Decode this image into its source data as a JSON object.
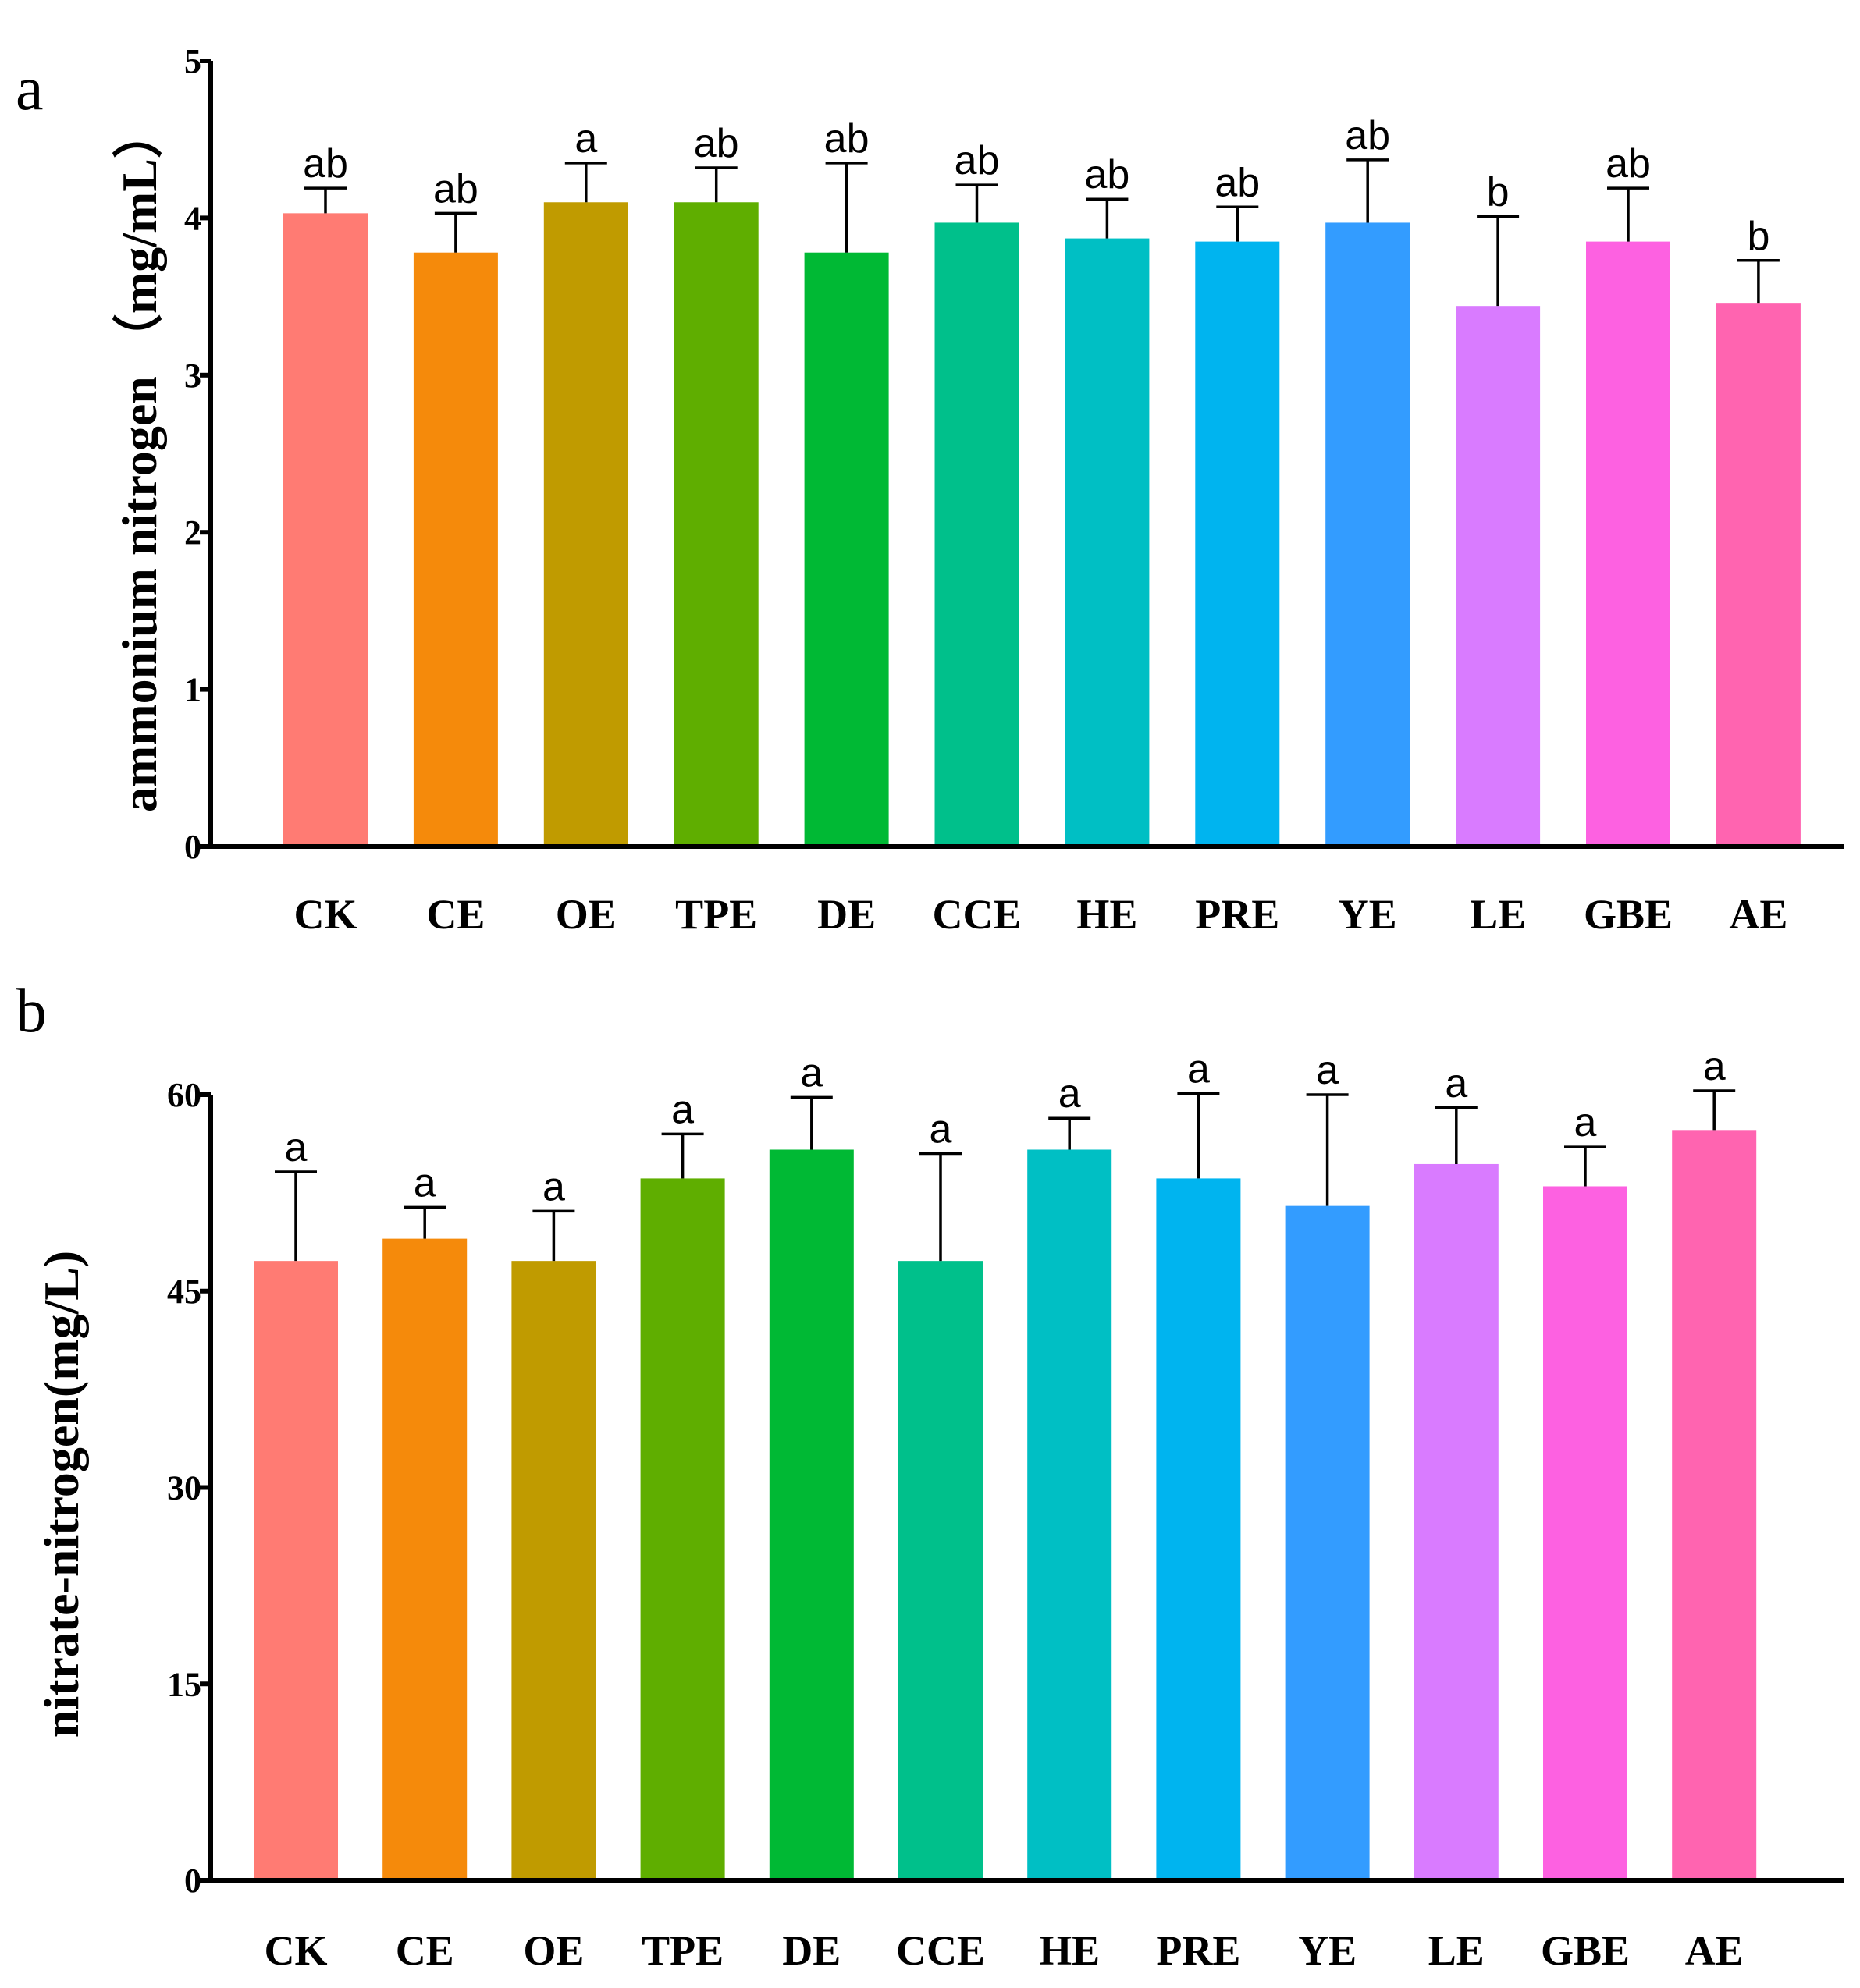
{
  "chart_data": [
    {
      "type": "bar",
      "panel_label": "a",
      "ylabel": "ammonium nitrogen （mg/mL）",
      "ylim": [
        0,
        5
      ],
      "yticks": [
        0,
        1,
        2,
        3,
        4,
        5
      ],
      "categories": [
        "CK",
        "CE",
        "OE",
        "TPE",
        "DE",
        "CCE",
        "HE",
        "PRE",
        "YE",
        "LE",
        "GBE",
        "AE"
      ],
      "values": [
        4.03,
        3.78,
        4.1,
        4.1,
        3.78,
        3.97,
        3.87,
        3.85,
        3.97,
        3.44,
        3.85,
        3.46
      ],
      "errors": [
        0.16,
        0.25,
        0.25,
        0.22,
        0.57,
        0.24,
        0.25,
        0.22,
        0.4,
        0.57,
        0.34,
        0.27
      ],
      "significance": [
        "ab",
        "ab",
        "a",
        "ab",
        "ab",
        "ab",
        "ab",
        "ab",
        "ab",
        "b",
        "ab",
        "b"
      ],
      "colors": [
        "#FF7B73",
        "#F58A0B",
        "#C09B00",
        "#5FAE00",
        "#00B934",
        "#00C08B",
        "#00BFC4",
        "#00B4EF",
        "#339CFF",
        "#D97BFF",
        "#FD61E1",
        "#FF64B0"
      ]
    },
    {
      "type": "bar",
      "panel_label": "b",
      "ylabel": "nitrate-nitrogen(mg/L)",
      "ylim": [
        0,
        60
      ],
      "yticks": [
        0,
        15,
        30,
        45,
        60
      ],
      "categories": [
        "CK",
        "CE",
        "OE",
        "TPE",
        "DE",
        "CCE",
        "HE",
        "PRE",
        "YE",
        "LE",
        "GBE",
        "AE"
      ],
      "values": [
        47.3,
        49.0,
        47.3,
        53.6,
        55.8,
        47.3,
        55.8,
        53.6,
        51.5,
        54.7,
        53.0,
        57.3
      ],
      "errors": [
        6.8,
        2.4,
        3.8,
        3.4,
        4.0,
        8.2,
        2.4,
        6.5,
        8.5,
        4.3,
        3.0,
        3.0
      ],
      "significance": [
        "a",
        "a",
        "a",
        "a",
        "a",
        "a",
        "a",
        "a",
        "a",
        "a",
        "a",
        "a"
      ],
      "colors": [
        "#FF7B73",
        "#F58A0B",
        "#C09B00",
        "#5FAE00",
        "#00B934",
        "#00C08B",
        "#00BFC4",
        "#00B4EF",
        "#339CFF",
        "#D97BFF",
        "#FD61E1",
        "#FF64B0"
      ]
    }
  ]
}
